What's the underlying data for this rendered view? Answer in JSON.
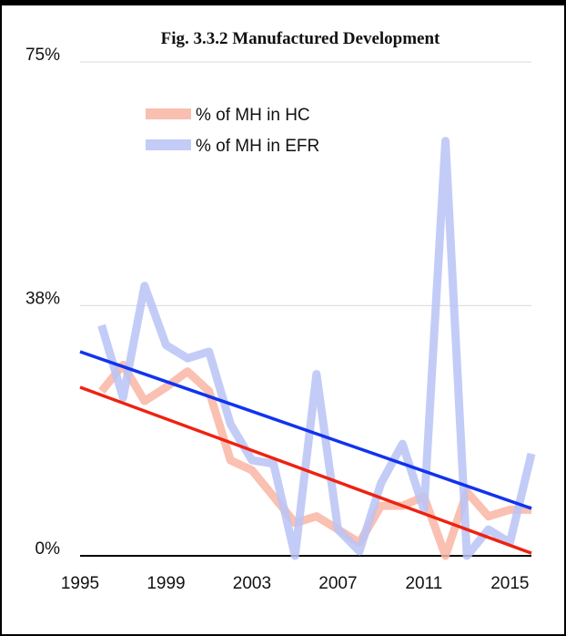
{
  "chart_data": {
    "type": "line",
    "title": "Fig. 3.3.2 Manufactured Development",
    "x": [
      1996,
      1997,
      1998,
      1999,
      2000,
      2001,
      2002,
      2003,
      2004,
      2005,
      2006,
      2007,
      2008,
      2009,
      2010,
      2011,
      2012,
      2013,
      2014,
      2015,
      2016
    ],
    "series": [
      {
        "name": "% of MH in HC",
        "color": "#f9b5a3",
        "values": [
          25,
          29,
          23.5,
          25.6,
          28,
          25,
          14.5,
          13,
          9,
          5,
          6,
          4,
          2,
          7.6,
          7.6,
          9,
          0,
          9.7,
          6,
          7,
          7
        ]
      },
      {
        "name": "% of MH in EFR",
        "color": "#b9c3f6",
        "values": [
          35,
          24,
          41,
          32,
          30,
          31,
          20,
          14.5,
          14,
          0,
          27.6,
          4,
          0.7,
          11,
          17,
          7,
          63,
          0,
          4,
          2,
          15.5
        ]
      }
    ],
    "trendlines": [
      {
        "color": "#ee2211",
        "values": [
          25.6,
          0.4
        ]
      },
      {
        "color": "#1133ee",
        "values": [
          31,
          7.2
        ]
      }
    ],
    "xlim": [
      1995,
      2016
    ],
    "xticks": [
      1995,
      1999,
      2003,
      2007,
      2011,
      2015
    ],
    "ylim": [
      0,
      75
    ],
    "yticks": [
      {
        "value": 0,
        "label": "0%"
      },
      {
        "value": 38,
        "label": "38%"
      },
      {
        "value": 75,
        "label": "75%"
      }
    ],
    "grid": true,
    "legend": "upper left"
  }
}
